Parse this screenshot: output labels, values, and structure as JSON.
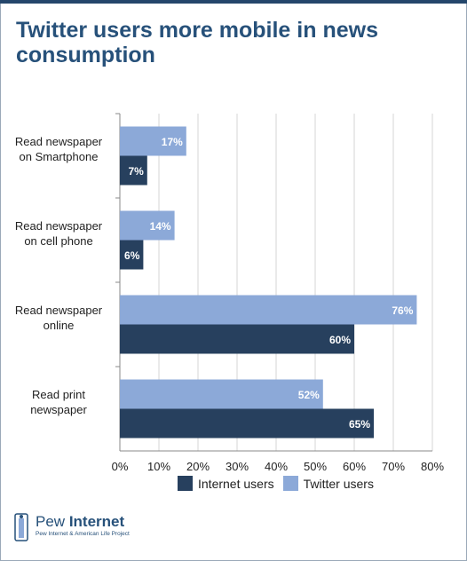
{
  "title": "Twitter users more mobile in news consumption",
  "chart_data": {
    "type": "bar",
    "orientation": "horizontal",
    "title": "Twitter users more mobile in news consumption",
    "categories": [
      [
        "Read newspaper",
        "on Smartphone"
      ],
      [
        "Read newspaper",
        "on cell phone"
      ],
      [
        "Read newspaper",
        "online"
      ],
      [
        "Read print",
        "newspaper"
      ]
    ],
    "series": [
      {
        "name": "Twitter users",
        "color": "#8ca9d8",
        "values": [
          17,
          14,
          76,
          52
        ]
      },
      {
        "name": "Internet users",
        "color": "#27405e",
        "values": [
          7,
          6,
          60,
          65
        ]
      }
    ],
    "xlim": [
      0,
      80
    ],
    "xticks": [
      "0%",
      "10%",
      "20%",
      "30%",
      "40%",
      "50%",
      "60%",
      "70%",
      "80%"
    ],
    "grid": true,
    "legend_position": "bottom"
  },
  "legend": [
    {
      "label": "Internet users",
      "color": "#27405e"
    },
    {
      "label": "Twitter users",
      "color": "#8ca9d8"
    }
  ],
  "logo": {
    "brand_a": "Pew",
    "brand_b": "Internet",
    "tagline": "Pew Internet & American Life Project"
  }
}
